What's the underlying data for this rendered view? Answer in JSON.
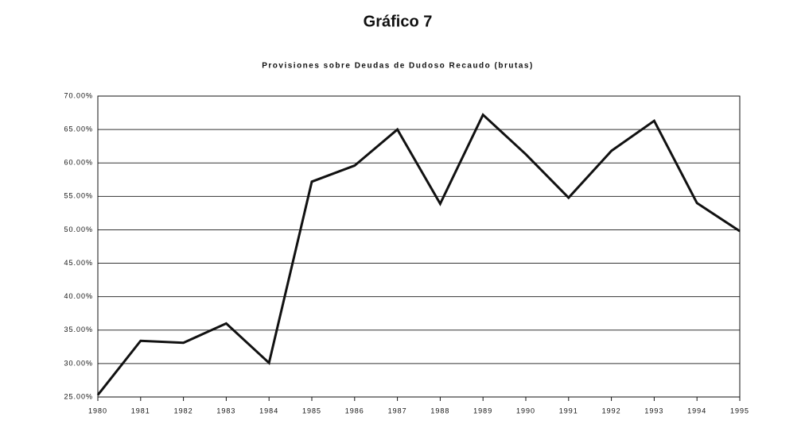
{
  "chart_data": {
    "type": "line",
    "title": "Gráfico 7",
    "subtitle": "Provisiones sobre Deudas de Dudoso Recaudo (brutas)",
    "x": [
      1980,
      1981,
      1982,
      1983,
      1984,
      1985,
      1986,
      1987,
      1988,
      1989,
      1990,
      1991,
      1992,
      1993,
      1994,
      1995
    ],
    "values": [
      25.3,
      33.4,
      33.1,
      36.0,
      30.1,
      57.2,
      59.6,
      65.0,
      53.9,
      67.2,
      61.3,
      54.8,
      61.8,
      66.3,
      54.0,
      49.8
    ],
    "color": "#111111",
    "xlim": [
      1980,
      1995
    ],
    "xticks": [
      1980,
      1981,
      1982,
      1983,
      1984,
      1985,
      1986,
      1987,
      1988,
      1989,
      1990,
      1991,
      1992,
      1993,
      1994,
      1995
    ],
    "ylim": [
      25,
      70
    ],
    "yticks": [
      {
        "value": 25,
        "label": "25.00%"
      },
      {
        "value": 30,
        "label": "30.00%"
      },
      {
        "value": 35,
        "label": "35.00%"
      },
      {
        "value": 40,
        "label": "40.00%"
      },
      {
        "value": 45,
        "label": "45.00%"
      },
      {
        "value": 50,
        "label": "50.00%"
      },
      {
        "value": 55,
        "label": "55.00%"
      },
      {
        "value": 60,
        "label": "60.00%"
      },
      {
        "value": 65,
        "label": "65.00%"
      },
      {
        "value": 70,
        "label": "70.00%"
      }
    ],
    "grid": true
  }
}
